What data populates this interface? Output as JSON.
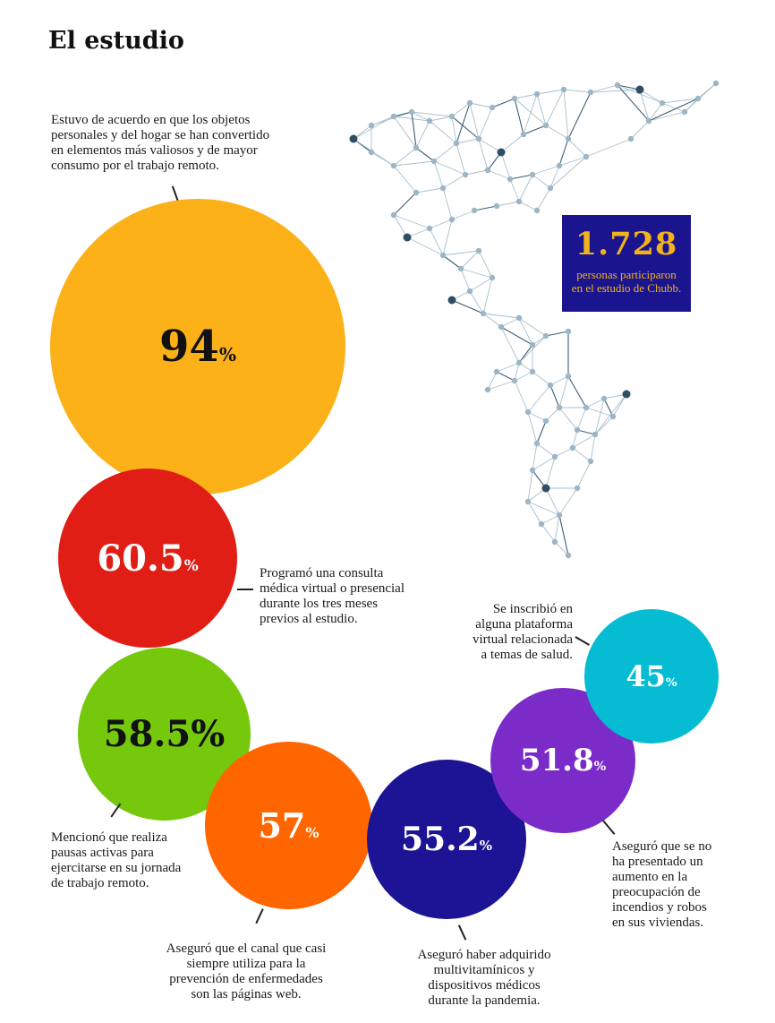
{
  "title": "El estudio",
  "stat": {
    "number": "1.728",
    "label_line1": "personas participaron",
    "label_line2": "en el estudio de Chubb."
  },
  "colors": {
    "c94": "#fbb117",
    "c60": "#e01e15",
    "c58": "#76c80d",
    "c57": "#ff6600",
    "c55": "#1c1494",
    "c51": "#7b2cc8",
    "c45": "#06bcd3",
    "box": "#1a148f",
    "box_text": "#f2b21c"
  },
  "items": {
    "i94": {
      "value": "94",
      "unit": "%",
      "note_lines": [
        "Estuvo de acuerdo en que los objetos",
        "personales y del hogar se han convertido",
        "en elementos más valiosos y de mayor",
        "consumo por el trabajo remoto."
      ]
    },
    "i60": {
      "value": "60.5",
      "unit": "%",
      "note_lines": [
        "Programó una consulta",
        "médica virtual o presencial",
        "durante los tres meses",
        "previos al estudio."
      ]
    },
    "i58": {
      "value": "58.5",
      "unit": "%",
      "note_lines": [
        "Mencionó que realiza",
        "pausas activas para",
        "ejercitarse en su jornada",
        "de trabajo remoto."
      ]
    },
    "i57": {
      "value": "57",
      "unit": "%",
      "note_lines": [
        "Aseguró que el canal que casi",
        "siempre utiliza para la",
        "prevención de enfermedades",
        "son las páginas web."
      ]
    },
    "i55": {
      "value": "55.2",
      "unit": "%",
      "note_lines": [
        "Aseguró haber adquirido",
        "multivitamínicos y",
        "dispositivos médicos",
        "durante la pandemia."
      ]
    },
    "i51": {
      "value": "51.8",
      "unit": "%",
      "note_lines": [
        "Aseguró que se no",
        "ha presentado un",
        "aumento en la",
        "preocupación de",
        "incendios y robos",
        "en sus viviendas."
      ]
    },
    "i45": {
      "value": "45",
      "unit": "%",
      "note_lines": [
        "Se inscribió en",
        "alguna plataforma",
        "virtual relacionada",
        "a temas de salud."
      ]
    }
  }
}
